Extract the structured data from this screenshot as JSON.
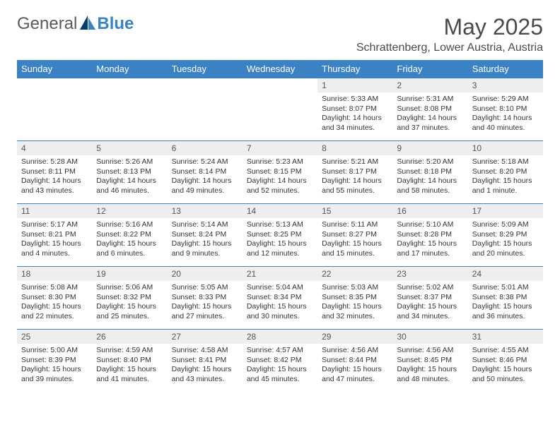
{
  "logo": {
    "text1": "General",
    "text2": "Blue"
  },
  "title": "May 2025",
  "location": "Schrattenberg, Lower Austria, Austria",
  "colors": {
    "brand": "#3b82c4",
    "daynum_bg": "#eeeeee",
    "text": "#333333"
  },
  "day_headers": [
    "Sunday",
    "Monday",
    "Tuesday",
    "Wednesday",
    "Thursday",
    "Friday",
    "Saturday"
  ],
  "weeks": [
    [
      {
        "n": "",
        "sr": "",
        "ss": "",
        "dl": ""
      },
      {
        "n": "",
        "sr": "",
        "ss": "",
        "dl": ""
      },
      {
        "n": "",
        "sr": "",
        "ss": "",
        "dl": ""
      },
      {
        "n": "",
        "sr": "",
        "ss": "",
        "dl": ""
      },
      {
        "n": "1",
        "sr": "Sunrise: 5:33 AM",
        "ss": "Sunset: 8:07 PM",
        "dl": "Daylight: 14 hours and 34 minutes."
      },
      {
        "n": "2",
        "sr": "Sunrise: 5:31 AM",
        "ss": "Sunset: 8:08 PM",
        "dl": "Daylight: 14 hours and 37 minutes."
      },
      {
        "n": "3",
        "sr": "Sunrise: 5:29 AM",
        "ss": "Sunset: 8:10 PM",
        "dl": "Daylight: 14 hours and 40 minutes."
      }
    ],
    [
      {
        "n": "4",
        "sr": "Sunrise: 5:28 AM",
        "ss": "Sunset: 8:11 PM",
        "dl": "Daylight: 14 hours and 43 minutes."
      },
      {
        "n": "5",
        "sr": "Sunrise: 5:26 AM",
        "ss": "Sunset: 8:13 PM",
        "dl": "Daylight: 14 hours and 46 minutes."
      },
      {
        "n": "6",
        "sr": "Sunrise: 5:24 AM",
        "ss": "Sunset: 8:14 PM",
        "dl": "Daylight: 14 hours and 49 minutes."
      },
      {
        "n": "7",
        "sr": "Sunrise: 5:23 AM",
        "ss": "Sunset: 8:15 PM",
        "dl": "Daylight: 14 hours and 52 minutes."
      },
      {
        "n": "8",
        "sr": "Sunrise: 5:21 AM",
        "ss": "Sunset: 8:17 PM",
        "dl": "Daylight: 14 hours and 55 minutes."
      },
      {
        "n": "9",
        "sr": "Sunrise: 5:20 AM",
        "ss": "Sunset: 8:18 PM",
        "dl": "Daylight: 14 hours and 58 minutes."
      },
      {
        "n": "10",
        "sr": "Sunrise: 5:18 AM",
        "ss": "Sunset: 8:20 PM",
        "dl": "Daylight: 15 hours and 1 minute."
      }
    ],
    [
      {
        "n": "11",
        "sr": "Sunrise: 5:17 AM",
        "ss": "Sunset: 8:21 PM",
        "dl": "Daylight: 15 hours and 4 minutes."
      },
      {
        "n": "12",
        "sr": "Sunrise: 5:16 AM",
        "ss": "Sunset: 8:22 PM",
        "dl": "Daylight: 15 hours and 6 minutes."
      },
      {
        "n": "13",
        "sr": "Sunrise: 5:14 AM",
        "ss": "Sunset: 8:24 PM",
        "dl": "Daylight: 15 hours and 9 minutes."
      },
      {
        "n": "14",
        "sr": "Sunrise: 5:13 AM",
        "ss": "Sunset: 8:25 PM",
        "dl": "Daylight: 15 hours and 12 minutes."
      },
      {
        "n": "15",
        "sr": "Sunrise: 5:11 AM",
        "ss": "Sunset: 8:27 PM",
        "dl": "Daylight: 15 hours and 15 minutes."
      },
      {
        "n": "16",
        "sr": "Sunrise: 5:10 AM",
        "ss": "Sunset: 8:28 PM",
        "dl": "Daylight: 15 hours and 17 minutes."
      },
      {
        "n": "17",
        "sr": "Sunrise: 5:09 AM",
        "ss": "Sunset: 8:29 PM",
        "dl": "Daylight: 15 hours and 20 minutes."
      }
    ],
    [
      {
        "n": "18",
        "sr": "Sunrise: 5:08 AM",
        "ss": "Sunset: 8:30 PM",
        "dl": "Daylight: 15 hours and 22 minutes."
      },
      {
        "n": "19",
        "sr": "Sunrise: 5:06 AM",
        "ss": "Sunset: 8:32 PM",
        "dl": "Daylight: 15 hours and 25 minutes."
      },
      {
        "n": "20",
        "sr": "Sunrise: 5:05 AM",
        "ss": "Sunset: 8:33 PM",
        "dl": "Daylight: 15 hours and 27 minutes."
      },
      {
        "n": "21",
        "sr": "Sunrise: 5:04 AM",
        "ss": "Sunset: 8:34 PM",
        "dl": "Daylight: 15 hours and 30 minutes."
      },
      {
        "n": "22",
        "sr": "Sunrise: 5:03 AM",
        "ss": "Sunset: 8:35 PM",
        "dl": "Daylight: 15 hours and 32 minutes."
      },
      {
        "n": "23",
        "sr": "Sunrise: 5:02 AM",
        "ss": "Sunset: 8:37 PM",
        "dl": "Daylight: 15 hours and 34 minutes."
      },
      {
        "n": "24",
        "sr": "Sunrise: 5:01 AM",
        "ss": "Sunset: 8:38 PM",
        "dl": "Daylight: 15 hours and 36 minutes."
      }
    ],
    [
      {
        "n": "25",
        "sr": "Sunrise: 5:00 AM",
        "ss": "Sunset: 8:39 PM",
        "dl": "Daylight: 15 hours and 39 minutes."
      },
      {
        "n": "26",
        "sr": "Sunrise: 4:59 AM",
        "ss": "Sunset: 8:40 PM",
        "dl": "Daylight: 15 hours and 41 minutes."
      },
      {
        "n": "27",
        "sr": "Sunrise: 4:58 AM",
        "ss": "Sunset: 8:41 PM",
        "dl": "Daylight: 15 hours and 43 minutes."
      },
      {
        "n": "28",
        "sr": "Sunrise: 4:57 AM",
        "ss": "Sunset: 8:42 PM",
        "dl": "Daylight: 15 hours and 45 minutes."
      },
      {
        "n": "29",
        "sr": "Sunrise: 4:56 AM",
        "ss": "Sunset: 8:44 PM",
        "dl": "Daylight: 15 hours and 47 minutes."
      },
      {
        "n": "30",
        "sr": "Sunrise: 4:56 AM",
        "ss": "Sunset: 8:45 PM",
        "dl": "Daylight: 15 hours and 48 minutes."
      },
      {
        "n": "31",
        "sr": "Sunrise: 4:55 AM",
        "ss": "Sunset: 8:46 PM",
        "dl": "Daylight: 15 hours and 50 minutes."
      }
    ]
  ]
}
